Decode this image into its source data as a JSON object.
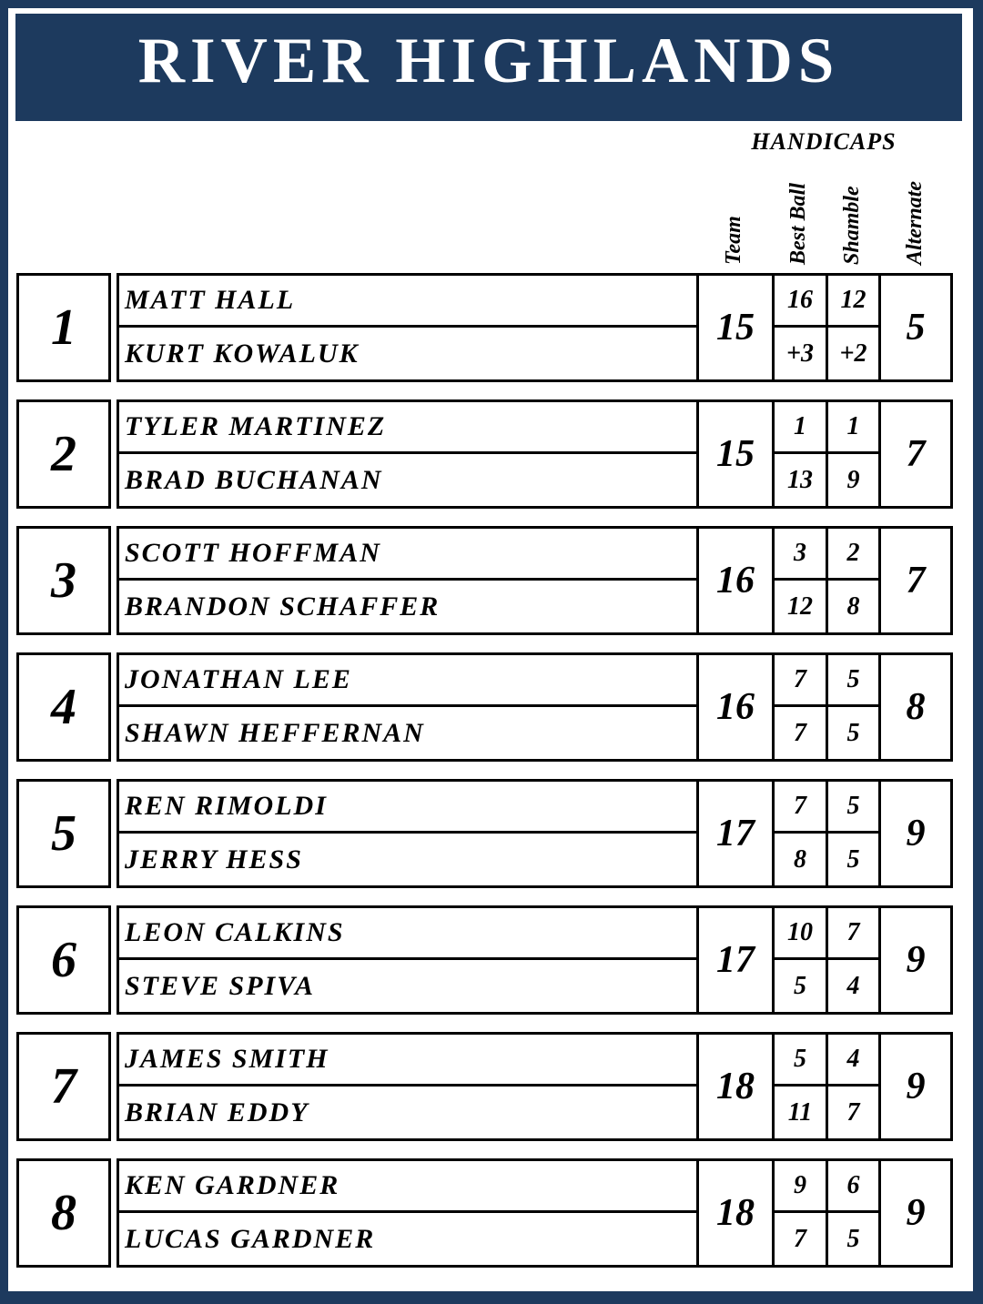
{
  "title": "RIVER HIGHLANDS",
  "subtitle": "HANDICAPS",
  "columns": {
    "team": "Team",
    "best_ball": "Best Ball",
    "shamble": "Shamble",
    "alternate": "Alternate"
  },
  "colors": {
    "navy": "#1d3a5e",
    "border_black": "#000000",
    "page_white": "#ffffff"
  },
  "teams": [
    {
      "number": "1",
      "players": [
        "MATT HALL",
        "KURT KOWALUK"
      ],
      "team": "15",
      "best_ball": [
        "16",
        "+3"
      ],
      "shamble": [
        "12",
        "+2"
      ],
      "alternate": "5"
    },
    {
      "number": "2",
      "players": [
        "TYLER MARTINEZ",
        "BRAD BUCHANAN"
      ],
      "team": "15",
      "best_ball": [
        "1",
        "13"
      ],
      "shamble": [
        "1",
        "9"
      ],
      "alternate": "7"
    },
    {
      "number": "3",
      "players": [
        "SCOTT HOFFMAN",
        "BRANDON SCHAFFER"
      ],
      "team": "16",
      "best_ball": [
        "3",
        "12"
      ],
      "shamble": [
        "2",
        "8"
      ],
      "alternate": "7"
    },
    {
      "number": "4",
      "players": [
        "JONATHAN LEE",
        "SHAWN HEFFERNAN"
      ],
      "team": "16",
      "best_ball": [
        "7",
        "7"
      ],
      "shamble": [
        "5",
        "5"
      ],
      "alternate": "8"
    },
    {
      "number": "5",
      "players": [
        "REN RIMOLDI",
        "JERRY HESS"
      ],
      "team": "17",
      "best_ball": [
        "7",
        "8"
      ],
      "shamble": [
        "5",
        "5"
      ],
      "alternate": "9"
    },
    {
      "number": "6",
      "players": [
        "LEON CALKINS",
        "STEVE SPIVA"
      ],
      "team": "17",
      "best_ball": [
        "10",
        "5"
      ],
      "shamble": [
        "7",
        "4"
      ],
      "alternate": "9"
    },
    {
      "number": "7",
      "players": [
        "JAMES SMITH",
        "BRIAN EDDY"
      ],
      "team": "18",
      "best_ball": [
        "5",
        "11"
      ],
      "shamble": [
        "4",
        "7"
      ],
      "alternate": "9"
    },
    {
      "number": "8",
      "players": [
        "KEN GARDNER",
        "LUCAS GARDNER"
      ],
      "team": "18",
      "best_ball": [
        "9",
        "7"
      ],
      "shamble": [
        "6",
        "5"
      ],
      "alternate": "9"
    }
  ]
}
